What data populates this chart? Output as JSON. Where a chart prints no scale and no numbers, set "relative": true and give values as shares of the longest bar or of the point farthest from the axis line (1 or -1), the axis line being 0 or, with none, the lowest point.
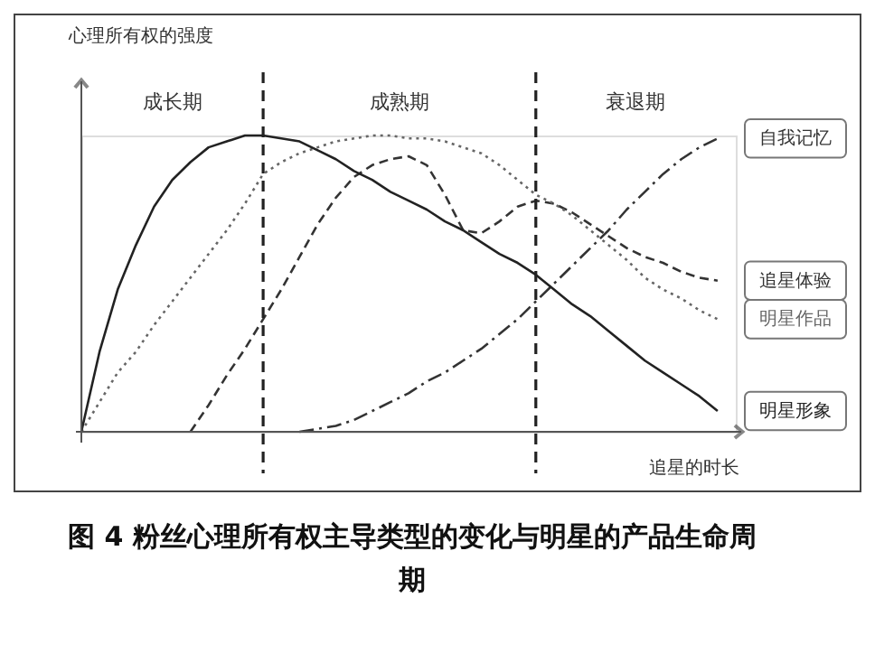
{
  "chart_data": {
    "type": "line",
    "relative": true,
    "title": "图 4 粉丝心理所有权主导类型的变化与明星的产品生命周期",
    "xlabel": "追星的时长",
    "ylabel": "心理所有权的强度",
    "tick_labels": false,
    "legend": "right",
    "categories": [
      null,
      null,
      null,
      null,
      null,
      null,
      null,
      null,
      null,
      null,
      null,
      null,
      null,
      null,
      null,
      null,
      null,
      null,
      null,
      null,
      null,
      null,
      null,
      null,
      null,
      null,
      null,
      null,
      null,
      null,
      null,
      null,
      null,
      null,
      null,
      null,
      null
    ],
    "annotations": [
      "成长期",
      "成熟期",
      "衰退期"
    ],
    "series": [
      {
        "name": "自我记忆",
        "color": "#333333",
        "line_style": "dashdot",
        "values": [
          null,
          null,
          null,
          null,
          null,
          null,
          null,
          null,
          null,
          null,
          null,
          null,
          0,
          0.01,
          0.02,
          0.04,
          0.07,
          0.1,
          0.13,
          0.17,
          0.2,
          0.24,
          0.28,
          0.33,
          0.38,
          0.44,
          0.5,
          0.56,
          0.62,
          0.68,
          0.75,
          0.81,
          0.87,
          0.92,
          0.96,
          0.99,
          null
        ]
      },
      {
        "name": "追星体验",
        "color": "#333333",
        "line_style": "dashed",
        "values": [
          null,
          null,
          null,
          null,
          null,
          null,
          0,
          0.09,
          0.19,
          0.28,
          0.38,
          0.48,
          0.59,
          0.7,
          0.79,
          0.86,
          0.9,
          0.92,
          0.93,
          0.9,
          0.8,
          0.68,
          0.67,
          0.71,
          0.76,
          0.78,
          0.77,
          0.74,
          0.7,
          0.66,
          0.62,
          0.59,
          0.57,
          0.54,
          0.52,
          0.51,
          null
        ]
      },
      {
        "name": "明星作品",
        "color": "#666666",
        "line_style": "dotted",
        "values": [
          0,
          0.1,
          0.2,
          0.27,
          0.36,
          0.44,
          0.52,
          0.6,
          0.68,
          0.77,
          0.87,
          0.91,
          0.94,
          0.96,
          0.98,
          0.99,
          1.0,
          1.0,
          0.99,
          0.99,
          0.98,
          0.96,
          0.94,
          0.9,
          0.85,
          0.8,
          0.77,
          0.73,
          0.68,
          0.63,
          0.58,
          0.52,
          0.48,
          0.45,
          0.41,
          0.38,
          null
        ]
      },
      {
        "name": "明星形象",
        "color": "#222222",
        "line_style": "solid",
        "values": [
          0,
          0.27,
          0.48,
          0.63,
          0.76,
          0.85,
          0.91,
          0.96,
          0.98,
          1.0,
          1.0,
          0.99,
          0.98,
          0.95,
          0.92,
          0.88,
          0.85,
          0.81,
          0.78,
          0.75,
          0.71,
          0.68,
          0.64,
          0.6,
          0.57,
          0.53,
          0.48,
          0.43,
          0.39,
          0.34,
          0.29,
          0.24,
          0.2,
          0.16,
          0.12,
          0.07,
          null
        ]
      }
    ]
  }
}
